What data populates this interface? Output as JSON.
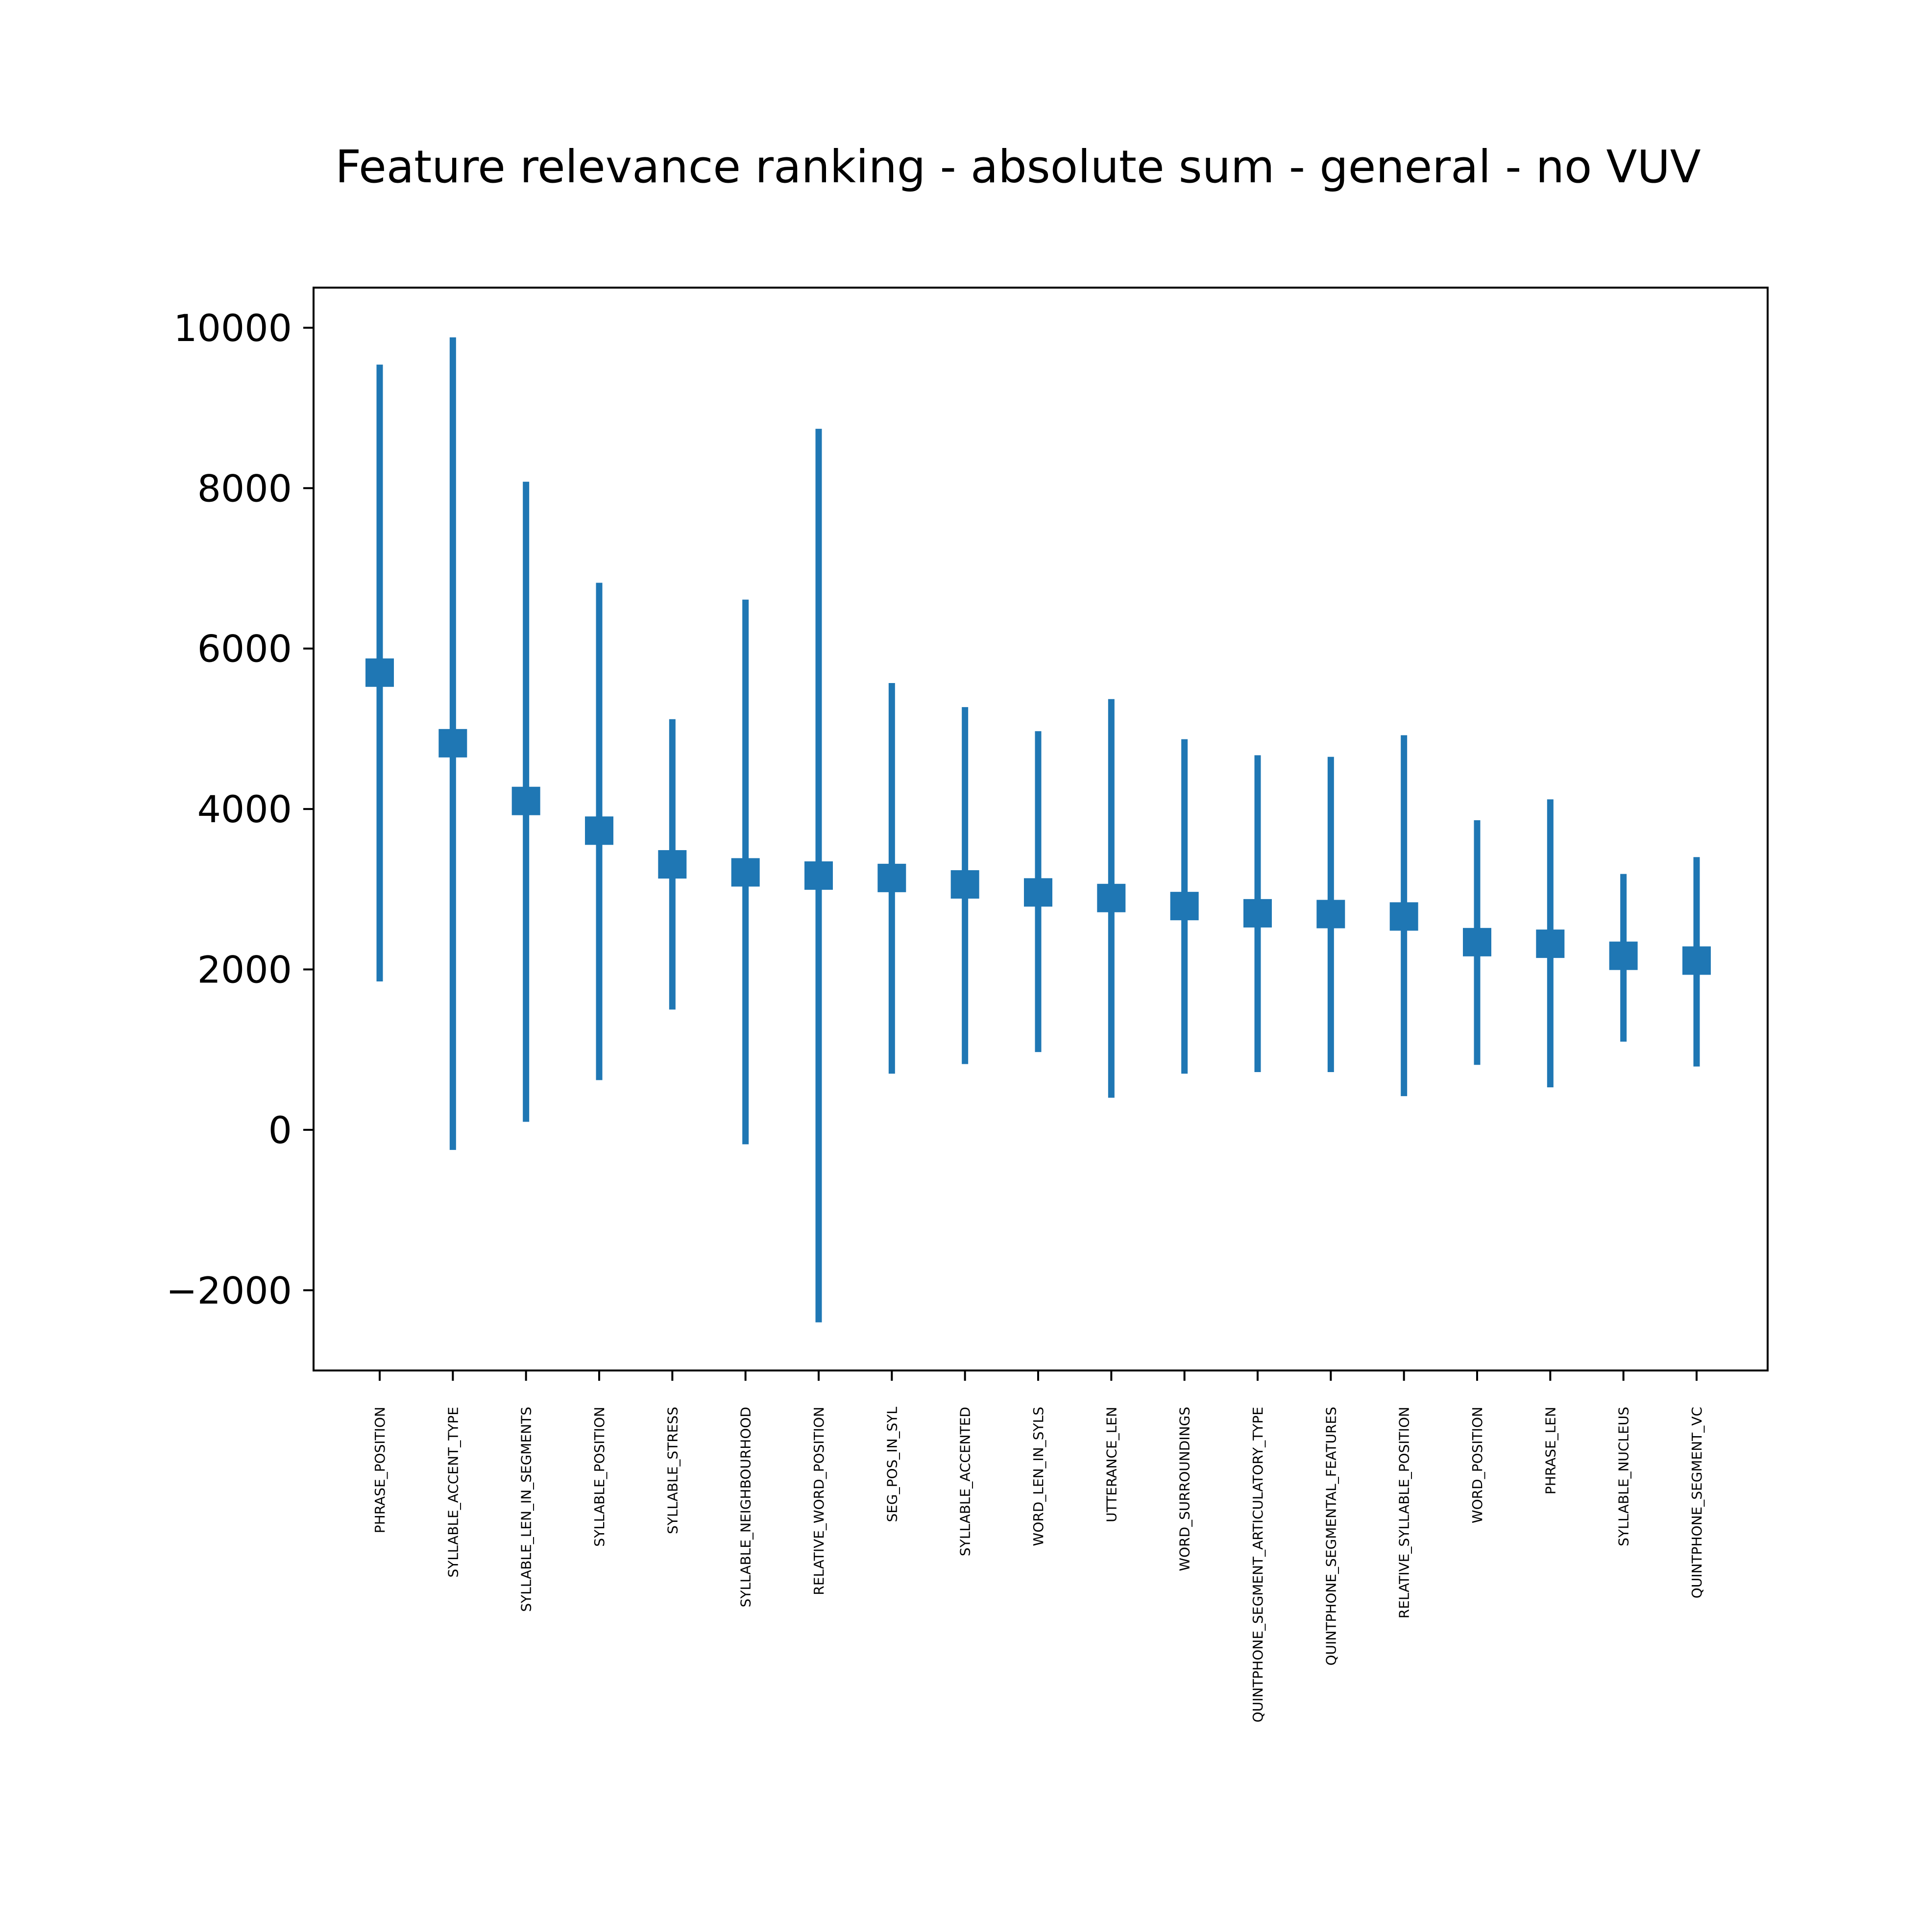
{
  "chart_data": {
    "type": "errorbar",
    "title": "Feature relevance ranking - absolute sum - general - no VUV",
    "xlabel": "",
    "ylabel": "",
    "ylim": [
      -3000,
      10500
    ],
    "yticks": [
      -2000,
      0,
      2000,
      4000,
      6000,
      8000,
      10000
    ],
    "ytick_labels": [
      "−2000",
      "0",
      "2000",
      "4000",
      "6000",
      "8000",
      "10000"
    ],
    "grid": false,
    "legend": "none",
    "color": "#1f77b4",
    "marker": "square",
    "categories": [
      "PHRASE_POSITION",
      "SYLLABLE_ACCENT_TYPE",
      "SYLLABLE_LEN_IN_SEGMENTS",
      "SYLLABLE_POSITION",
      "SYLLABLE_STRESS",
      "SYLLABLE_NEIGHBOURHOOD",
      "RELATIVE_WORD_POSITION",
      "SEG_POS_IN_SYL",
      "SYLLABLE_ACCENTED",
      "WORD_LEN_IN_SYLS",
      "UTTERANCE_LEN",
      "WORD_SURROUNDINGS",
      "QUINTPHONE_SEGMENT_ARTICULATORY_TYPE",
      "QUINTPHONE_SEGMENTAL_FEATURES",
      "RELATIVE_SYLLABLE_POSITION",
      "WORD_POSITION",
      "PHRASE_LEN",
      "SYLLABLE_NUCLEUS",
      "QUINTPHONE_SEGMENT_VC"
    ],
    "values": [
      5700,
      4820,
      4100,
      3730,
      3310,
      3210,
      3170,
      3140,
      3060,
      2960,
      2890,
      2790,
      2700,
      2690,
      2660,
      2340,
      2320,
      2170,
      2110
    ],
    "error_low": [
      1850,
      -250,
      100,
      620,
      1500,
      -180,
      -2400,
      700,
      820,
      970,
      400,
      700,
      720,
      720,
      420,
      810,
      530,
      1100,
      790
    ],
    "error_high": [
      9540,
      9880,
      8080,
      6820,
      5120,
      6610,
      8740,
      5570,
      5270,
      4970,
      5370,
      4870,
      4670,
      4650,
      4920,
      3860,
      4120,
      3190,
      3400
    ]
  }
}
